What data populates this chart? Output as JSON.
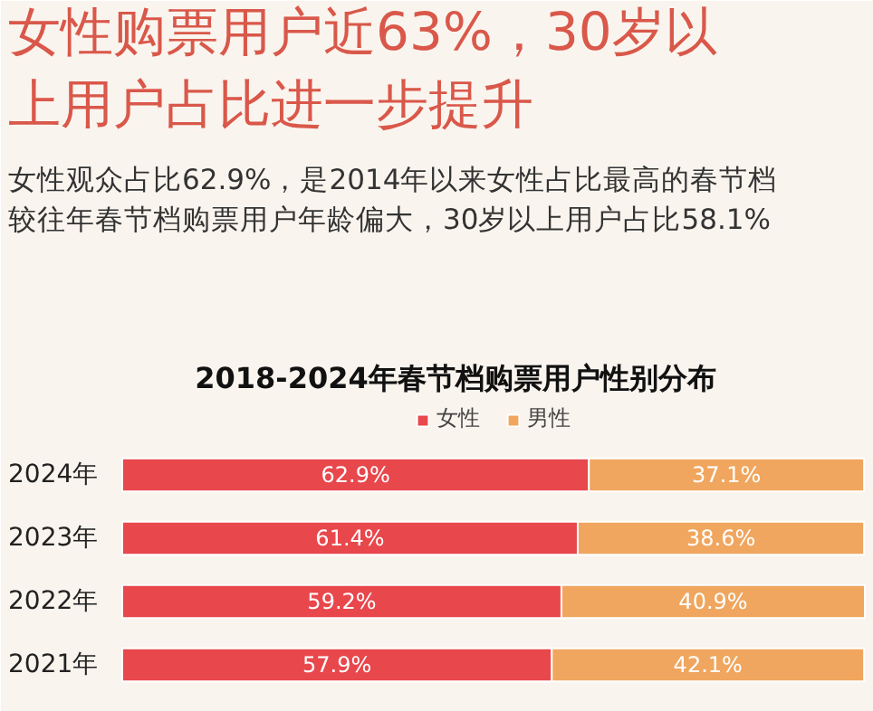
{
  "chart_data": {
    "type": "bar",
    "orientation": "horizontal",
    "stacked": true,
    "title": "女性购票用户近63%，30岁以上用户占比进一步提升",
    "annotations": [
      "女性观众占比62.9%，是2014年以来女性占比最高的春节档",
      "较往年春节档购票用户年龄偏大，30岁以上用户占比58.1%"
    ],
    "subtitle": "2018-2024年春节档购票用户性别分布",
    "categories": [
      "2024年",
      "2023年",
      "2022年",
      "2021年"
    ],
    "series": [
      {
        "name": "女性",
        "color": "#e8474c",
        "values": [
          62.9,
          61.4,
          59.2,
          57.9
        ],
        "value_labels": [
          "62.9%",
          "61.4%",
          "59.2%",
          "57.9%"
        ]
      },
      {
        "name": "男性",
        "color": "#f0a65e",
        "values": [
          37.1,
          38.6,
          40.9,
          42.1
        ],
        "value_labels": [
          "37.1%",
          "38.6%",
          "40.9%",
          "42.1%"
        ]
      }
    ],
    "legend": "top",
    "grid": false
  }
}
